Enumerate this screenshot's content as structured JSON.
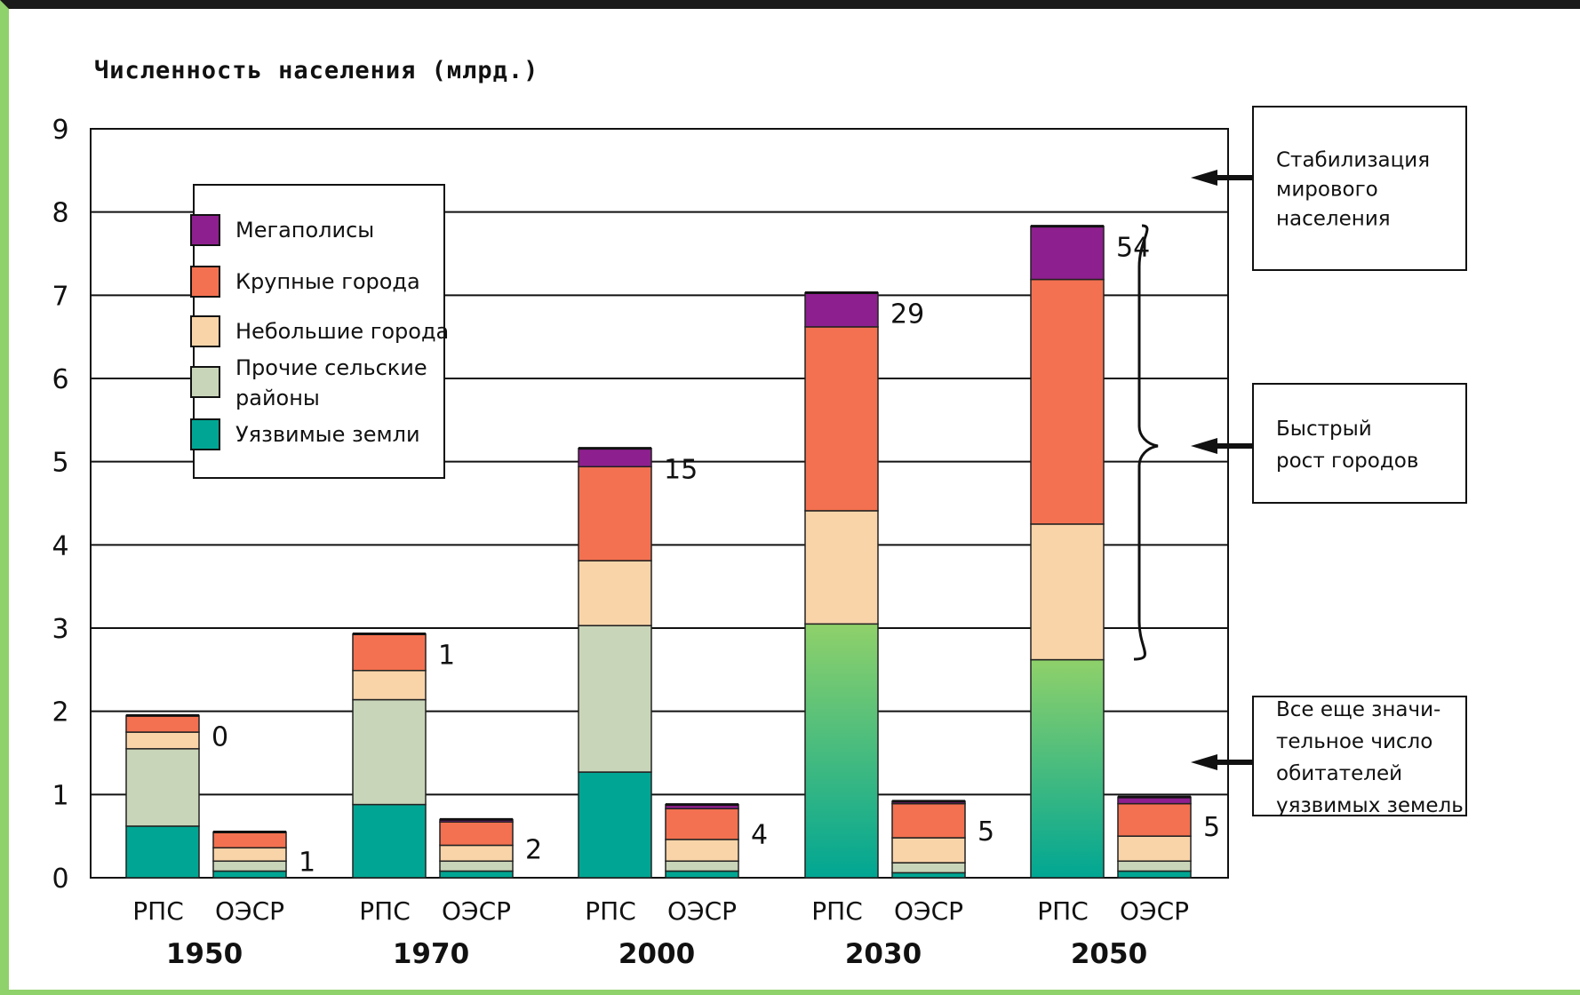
{
  "chart_data": {
    "type": "bar",
    "stacked": true,
    "title": "Численность населения (млрд.)",
    "ylim": [
      0,
      9
    ],
    "yticks": [
      "0",
      "1",
      "2",
      "3",
      "4",
      "5",
      "6",
      "7",
      "8",
      "9"
    ],
    "grid": true,
    "years": [
      "1950",
      "1970",
      "2000",
      "2030",
      "2050"
    ],
    "groups": [
      "РПС",
      "ОЭСР"
    ],
    "series": [
      {
        "name": "Уязвимые земли",
        "color": "#00a693"
      },
      {
        "name": "Прочие сельские районы",
        "color": "#c9d5b8"
      },
      {
        "name": "Небольшие города",
        "color": "#f9d4a8"
      },
      {
        "name": "Крупные города",
        "color": "#f37150"
      },
      {
        "name": "Мегаполисы",
        "color": "#8e1f8e"
      }
    ],
    "bars": [
      {
        "year": "1950",
        "group": "РПС",
        "values": [
          0.62,
          0.93,
          0.2,
          0.2,
          0.0
        ],
        "label": "0"
      },
      {
        "year": "1950",
        "group": "ОЭСР",
        "values": [
          0.08,
          0.12,
          0.16,
          0.19,
          0.0
        ],
        "label": "1"
      },
      {
        "year": "1970",
        "group": "РПС",
        "values": [
          0.88,
          1.26,
          0.35,
          0.44,
          0.0
        ],
        "label": "1"
      },
      {
        "year": "1970",
        "group": "ОЭСР",
        "values": [
          0.08,
          0.12,
          0.19,
          0.28,
          0.03
        ],
        "label": "2"
      },
      {
        "year": "2000",
        "group": "РПС",
        "values": [
          1.27,
          1.76,
          0.78,
          1.13,
          0.22
        ],
        "label": "15"
      },
      {
        "year": "2000",
        "group": "ОЭСР",
        "values": [
          0.08,
          0.12,
          0.26,
          0.37,
          0.05
        ],
        "label": "4"
      },
      {
        "year": "2030",
        "group": "РПС",
        "values": [
          3.05,
          0.0,
          1.36,
          2.21,
          0.41
        ],
        "label": "29"
      },
      {
        "year": "2030",
        "group": "ОЭСР",
        "values": [
          0.06,
          0.12,
          0.3,
          0.41,
          0.03
        ],
        "label": "5"
      },
      {
        "year": "2050",
        "group": "РПС",
        "values": [
          2.62,
          0.0,
          1.63,
          2.94,
          0.64
        ],
        "label": "54"
      },
      {
        "year": "2050",
        "group": "ОЭСР",
        "values": [
          0.08,
          0.12,
          0.3,
          0.39,
          0.08
        ],
        "label": "5"
      }
    ],
    "legend_placement": "top-left"
  },
  "annotations": {
    "stabilization": [
      "Стабилизация",
      "мирового",
      "населения"
    ],
    "rapid_growth": [
      "Быстрый",
      "рост городов"
    ],
    "vulnerable": [
      "Все еще значи-",
      "тельное число",
      "обитателей",
      "уязвимых земель"
    ]
  },
  "legend": {
    "items": [
      {
        "label": [
          "Мегаполисы"
        ],
        "color": "#8e1f8e"
      },
      {
        "label": [
          "Крупные города"
        ],
        "color": "#f37150"
      },
      {
        "label": [
          "Небольшие города"
        ],
        "color": "#f9d4a8"
      },
      {
        "label": [
          "Прочие сельские",
          "районы"
        ],
        "color": "#c9d5b8"
      },
      {
        "label": [
          "Уязвимые земли"
        ],
        "color": "#00a693"
      }
    ]
  }
}
